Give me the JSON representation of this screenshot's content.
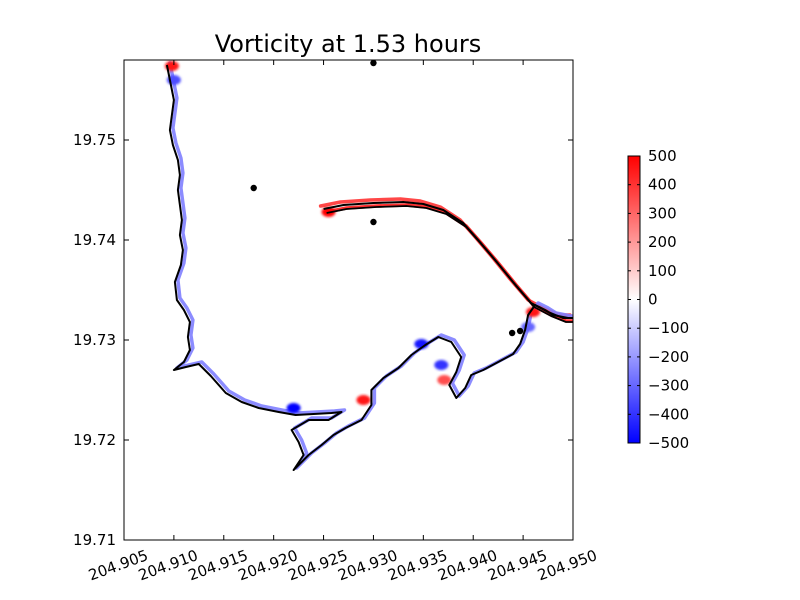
{
  "chart_data": {
    "type": "heatmap",
    "title": "Vorticity at 1.53 hours",
    "xlabel": "",
    "ylabel": "",
    "xlim": [
      204.905,
      204.95
    ],
    "ylim": [
      19.71,
      19.758
    ],
    "x_ticks": [
      204.905,
      204.91,
      204.915,
      204.92,
      204.925,
      204.93,
      204.935,
      204.94,
      204.945,
      204.95
    ],
    "x_tick_labels": [
      "204.905",
      "204.910",
      "204.915",
      "204.920",
      "204.925",
      "204.930",
      "204.935",
      "204.940",
      "204.945",
      "204.950"
    ],
    "y_ticks": [
      19.71,
      19.72,
      19.73,
      19.74,
      19.75
    ],
    "y_tick_labels": [
      "19.71",
      "19.72",
      "19.73",
      "19.74",
      "19.75"
    ],
    "grid": false,
    "colormap": "bwr",
    "colorbar": {
      "range": [
        -500,
        500
      ],
      "ticks": [
        500,
        400,
        300,
        200,
        100,
        0,
        -100,
        -200,
        -300,
        -400,
        -500
      ],
      "tick_labels": [
        "500",
        "400",
        "300",
        "200",
        "100",
        "0",
        "−100",
        "−200",
        "−300",
        "−400",
        "−500"
      ],
      "colors": {
        "max": "#ff0000",
        "mid": "#ffffff",
        "min": "#0000ff"
      }
    },
    "gauges": [
      {
        "x": 204.93,
        "y": 19.7577
      },
      {
        "x": 204.918,
        "y": 19.7452
      },
      {
        "x": 204.93,
        "y": 19.7418
      },
      {
        "x": 204.9439,
        "y": 19.7307
      },
      {
        "x": 204.9447,
        "y": 19.7309
      }
    ],
    "shoreline": [
      [
        204.9093,
        19.7575
      ],
      [
        204.9097,
        19.7555
      ],
      [
        204.91,
        19.754
      ],
      [
        204.9098,
        19.7525
      ],
      [
        204.9096,
        19.751
      ],
      [
        204.9099,
        19.7495
      ],
      [
        204.9104,
        19.748
      ],
      [
        204.9106,
        19.7465
      ],
      [
        204.9104,
        19.745
      ],
      [
        204.9106,
        19.7435
      ],
      [
        204.9108,
        19.742
      ],
      [
        204.9106,
        19.7405
      ],
      [
        204.9109,
        19.739
      ],
      [
        204.9107,
        19.7375
      ],
      [
        204.9101,
        19.7358
      ],
      [
        204.9103,
        19.734
      ],
      [
        204.911,
        19.733
      ],
      [
        204.9116,
        19.7318
      ],
      [
        204.9114,
        19.7303
      ],
      [
        204.9116,
        19.729
      ],
      [
        204.911,
        19.7278
      ],
      [
        204.91,
        19.727
      ],
      [
        204.9112,
        19.7273
      ],
      [
        204.9125,
        19.7276
      ],
      [
        204.9137,
        19.7264
      ],
      [
        204.9152,
        19.7247
      ],
      [
        204.9168,
        19.7238
      ],
      [
        204.9185,
        19.7232
      ],
      [
        204.9205,
        19.7228
      ],
      [
        204.9222,
        19.7225
      ],
      [
        204.924,
        19.7226
      ],
      [
        204.9258,
        19.7227
      ],
      [
        204.9268,
        19.7228
      ],
      [
        204.9255,
        19.722
      ],
      [
        204.9235,
        19.722
      ],
      [
        204.9218,
        19.721
      ],
      [
        204.9225,
        19.7198
      ],
      [
        204.923,
        19.7185
      ],
      [
        204.922,
        19.717
      ],
      [
        204.9235,
        19.7185
      ],
      [
        204.9248,
        19.7195
      ],
      [
        204.926,
        19.7205
      ],
      [
        204.9272,
        19.7212
      ],
      [
        204.9288,
        19.722
      ],
      [
        204.9298,
        19.7235
      ],
      [
        204.9298,
        19.725
      ],
      [
        204.931,
        19.7262
      ],
      [
        204.9325,
        19.7272
      ],
      [
        204.9338,
        19.7285
      ],
      [
        204.9352,
        19.7295
      ],
      [
        204.9365,
        19.7303
      ],
      [
        204.9378,
        19.7298
      ],
      [
        204.9388,
        19.7283
      ],
      [
        204.9383,
        19.7268
      ],
      [
        204.9376,
        19.7255
      ],
      [
        204.9383,
        19.7242
      ],
      [
        204.9392,
        19.7252
      ],
      [
        204.9398,
        19.7265
      ],
      [
        204.941,
        19.727
      ],
      [
        204.9425,
        19.7278
      ],
      [
        204.944,
        19.7286
      ],
      [
        204.9447,
        19.7296
      ],
      [
        204.9452,
        19.731
      ],
      [
        204.9455,
        19.7325
      ],
      [
        204.9462,
        19.7335
      ],
      [
        204.9472,
        19.733
      ],
      [
        204.948,
        19.7325
      ],
      [
        204.9495,
        19.7322
      ],
      [
        204.95,
        19.7322
      ]
    ],
    "breakwater": [
      [
        204.925,
        19.7431
      ],
      [
        204.927,
        19.7435
      ],
      [
        204.93,
        19.7437
      ],
      [
        204.933,
        19.7438
      ],
      [
        204.935,
        19.7436
      ],
      [
        204.937,
        19.743
      ],
      [
        204.939,
        19.7417
      ],
      [
        204.9405,
        19.74
      ],
      [
        204.9422,
        19.738
      ],
      [
        204.944,
        19.7358
      ],
      [
        204.9458,
        19.7337
      ],
      [
        204.9475,
        19.7328
      ],
      [
        204.949,
        19.7322
      ],
      [
        204.95,
        19.7322
      ]
    ],
    "vorticity_bands": [
      {
        "sign": "positive",
        "side": "south-west",
        "path": "breakwater",
        "intensity": 0.9
      },
      {
        "sign": "positive",
        "side": "north-east",
        "path": "breakwater",
        "intensity": 0.8
      },
      {
        "sign": "negative",
        "side": "inner",
        "path": "shoreline",
        "intensity": 0.5
      }
    ],
    "hotspots": [
      {
        "x": 204.9255,
        "y": 19.7428,
        "value": 500
      },
      {
        "x": 204.9098,
        "y": 19.7574,
        "value": 450
      },
      {
        "x": 204.91,
        "y": 19.756,
        "value": -350
      },
      {
        "x": 204.929,
        "y": 19.724,
        "value": 450
      },
      {
        "x": 204.922,
        "y": 19.7232,
        "value": -500
      },
      {
        "x": 204.9371,
        "y": 19.726,
        "value": 350
      },
      {
        "x": 204.9368,
        "y": 19.7275,
        "value": -400
      },
      {
        "x": 204.9348,
        "y": 19.7296,
        "value": -450
      },
      {
        "x": 204.946,
        "y": 19.7328,
        "value": 450
      },
      {
        "x": 204.9455,
        "y": 19.7313,
        "value": -300
      }
    ]
  }
}
